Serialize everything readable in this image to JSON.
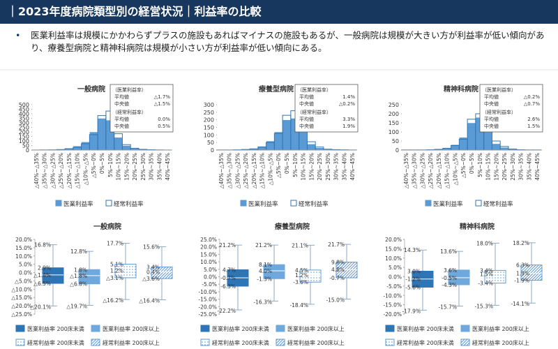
{
  "header": {
    "title": "｜2023年度病院類型別の経営状況｜利益率の比較"
  },
  "bullets": [
    "医業利益率は規模にかかわらずプラスの施設もあればマイナスの施設もあるが、一般病院は規模が大きい方が利益率が低い傾向があり、療養型病院と精神科病院は規模が小さい方が利益率が低い傾向にある。"
  ],
  "chart_data": [
    {
      "type": "bar",
      "title": "一般病院",
      "categories": [
        "△40%~△35%",
        "△35%~△30%",
        "△30%~△25%",
        "△25%~△20%",
        "△20%~△15%",
        "△15%~△10%",
        "△10%~△5%",
        "△5%~0%",
        "0%~5%",
        "5%~10%",
        "10%~15%",
        "15%~20%",
        "20%~25%",
        "25%~30%",
        "30%~35%",
        "35%~40%",
        "40%~45%"
      ],
      "series": [
        {
          "name": "医業利益率",
          "color": "#5b9bd5",
          "outline": false,
          "values": [
            2,
            3,
            5,
            10,
            20,
            45,
            90,
            200,
            350,
            330,
            140,
            50,
            20,
            8,
            4,
            2,
            1
          ]
        },
        {
          "name": "経常利益率",
          "color": "#2e75b6",
          "outline": true,
          "values": [
            1,
            2,
            3,
            6,
            15,
            30,
            70,
            170,
            380,
            430,
            180,
            60,
            20,
            8,
            4,
            2,
            1
          ]
        }
      ],
      "ylim": [
        0,
        500
      ],
      "yticks": [
        0,
        50,
        100,
        150,
        200,
        250,
        300,
        350,
        400,
        450,
        500
      ],
      "stats": [
        {
          "heading": "（医業利益率）",
          "rows": [
            [
              "平均値",
              "△1.7%"
            ],
            [
              "中央値",
              "△1.5%"
            ]
          ]
        },
        {
          "heading": "（経常利益率）",
          "rows": [
            [
              "平均値",
              "0.0%"
            ],
            [
              "中央値",
              "0.5%"
            ]
          ]
        }
      ]
    },
    {
      "type": "bar",
      "title": "療養型病院",
      "categories": [
        "△40%~△35%",
        "△35%~△30%",
        "△30%~△25%",
        "△25%~△20%",
        "△20%~△15%",
        "△15%~△10%",
        "△10%~△5%",
        "△5%~0%",
        "0%~5%",
        "5%~10%",
        "10%~15%",
        "15%~20%",
        "20%~25%",
        "25%~30%",
        "30%~35%",
        "35%~40%",
        "40%~45%"
      ],
      "series": [
        {
          "name": "医業利益率",
          "color": "#5b9bd5",
          "outline": false,
          "values": [
            1,
            2,
            3,
            5,
            10,
            25,
            60,
            120,
            200,
            210,
            120,
            40,
            15,
            5,
            3,
            2,
            1
          ]
        },
        {
          "name": "経常利益率",
          "color": "#2e75b6",
          "outline": true,
          "values": [
            1,
            1,
            2,
            4,
            8,
            20,
            50,
            110,
            230,
            260,
            160,
            55,
            20,
            6,
            3,
            2,
            1
          ]
        }
      ],
      "ylim": [
        0,
        300
      ],
      "yticks": [
        0,
        50,
        100,
        150,
        200,
        250,
        300
      ],
      "stats": [
        {
          "heading": "（医業利益率）",
          "rows": [
            [
              "平均値",
              "1.4%"
            ],
            [
              "中央値",
              "△0.2%"
            ]
          ]
        },
        {
          "heading": "（経常利益率）",
          "rows": [
            [
              "平均値",
              "3.3%"
            ],
            [
              "中央値",
              "1.9%"
            ]
          ]
        }
      ]
    },
    {
      "type": "bar",
      "title": "精神科病院",
      "categories": [
        "△40%~△35%",
        "△35%~△30%",
        "△30%~△25%",
        "△25%~△20%",
        "△20%~△15%",
        "△15%~△10%",
        "△10%~△5%",
        "△5%~0%",
        "0%~5%",
        "5%~10%",
        "10%~15%",
        "15%~20%",
        "20%~25%",
        "25%~30%",
        "30%~35%",
        "35%~40%",
        "40%~45%"
      ],
      "series": [
        {
          "name": "医業利益率",
          "color": "#5b9bd5",
          "outline": false,
          "values": [
            1,
            1,
            2,
            3,
            5,
            12,
            30,
            70,
            150,
            180,
            100,
            35,
            15,
            5,
            2,
            1,
            1
          ]
        },
        {
          "name": "経常利益率",
          "color": "#2e75b6",
          "outline": true,
          "values": [
            1,
            1,
            1,
            2,
            4,
            10,
            25,
            60,
            170,
            200,
            130,
            50,
            20,
            6,
            2,
            1,
            1
          ]
        }
      ],
      "ylim": [
        0,
        250
      ],
      "yticks": [
        0,
        50,
        100,
        150,
        200,
        250
      ],
      "stats": [
        {
          "heading": "（医業利益率）",
          "rows": [
            [
              "平均値",
              "△0.2%"
            ],
            [
              "中央値",
              "△0.7%"
            ]
          ]
        },
        {
          "heading": "（経常利益率）",
          "rows": [
            [
              "平均値",
              "2.6%"
            ],
            [
              "中央値",
              "1.5%"
            ]
          ]
        }
      ]
    },
    {
      "type": "box",
      "title": "一般病院",
      "ylim": [
        -25,
        20
      ],
      "yticks": [
        {
          "value": 20,
          "label": "20.0%"
        },
        {
          "value": 15,
          "label": "15.0%"
        },
        {
          "value": 10,
          "label": "10.0%"
        },
        {
          "value": 5,
          "label": "5.0%"
        },
        {
          "value": 0,
          "label": "0.0%"
        },
        {
          "value": -5,
          "label": "△5.0%"
        },
        {
          "value": -10,
          "label": "△10.0%"
        },
        {
          "value": -15,
          "label": "△15.0%"
        },
        {
          "value": -20,
          "label": "△20.0%"
        },
        {
          "value": -25,
          "label": "△25.0%"
        }
      ],
      "series": [
        {
          "name": "医業利益率 200床未満",
          "color": "#2e75b6",
          "pattern": "solid",
          "values": [
            -20.1,
            -6.5,
            -1.4,
            2.9,
            16.8
          ],
          "value_labels": [
            "△20.1%",
            "△6.5%",
            "△1.4%",
            "2.9%",
            "16.8%"
          ]
        },
        {
          "name": "医業利益率 200床以上",
          "color": "#6fa8dc",
          "pattern": "solid",
          "values": [
            -19.7,
            -6.8,
            -1.8,
            1.8,
            12.8
          ],
          "value_labels": [
            "△19.7%",
            "△6.8%",
            "△1.8%",
            "1.8%",
            "12.8%"
          ]
        },
        {
          "name": "経常利益率 200床未満",
          "color": "#5b9bd5",
          "pattern": "dots",
          "values": [
            -16.2,
            -3.1,
            1.2,
            5.1,
            17.7
          ],
          "value_labels": [
            "△16.2%",
            "△3.1%",
            "1.2%",
            "5.1%",
            "17.7%"
          ]
        },
        {
          "name": "経常利益率 200床以上",
          "color": "#5b9bd5",
          "pattern": "diagonal",
          "values": [
            -16.4,
            -3.6,
            0.4,
            3.4,
            15.6
          ],
          "value_labels": [
            "△16.4%",
            "△3.6%",
            "0.4%",
            "3.4%",
            "15.6%"
          ]
        }
      ]
    },
    {
      "type": "box",
      "title": "療養型病院",
      "ylim": [
        -25,
        25
      ],
      "yticks": [
        {
          "value": 25,
          "label": "25.0%"
        },
        {
          "value": 20,
          "label": "20.0%"
        },
        {
          "value": 15,
          "label": "15.0%"
        },
        {
          "value": 10,
          "label": "10.0%"
        },
        {
          "value": 5,
          "label": "5.0%"
        },
        {
          "value": 0,
          "label": "0.0%"
        },
        {
          "value": -5,
          "label": "-5.0%"
        },
        {
          "value": -10,
          "label": "-10.0%"
        },
        {
          "value": -15,
          "label": "-15.0%"
        },
        {
          "value": -20,
          "label": "-20.0%"
        },
        {
          "value": -25,
          "label": "-25.0%"
        }
      ],
      "series": [
        {
          "name": "医業利益率 200床未満",
          "color": "#2e75b6",
          "pattern": "solid",
          "values": [
            -22.2,
            -6.3,
            -0.7,
            4.7,
            21.2
          ],
          "value_labels": [
            "-22.2%",
            "-6.3%",
            "-0.7%",
            "4.7%",
            "21.2%"
          ]
        },
        {
          "name": "医業利益率 200床以上",
          "color": "#6fa8dc",
          "pattern": "solid",
          "values": [
            -16.3,
            -1.3,
            4.0,
            8.1,
            21.2
          ],
          "value_labels": [
            "-16.3%",
            "-1.3%",
            "4.0%",
            "8.1%",
            "21.2%"
          ]
        },
        {
          "name": "経常利益率 200床未満",
          "color": "#5b9bd5",
          "pattern": "dots",
          "values": [
            -18.4,
            -3.6,
            1.2,
            4.5,
            21.1
          ],
          "value_labels": [
            "-18.4%",
            "-3.6%",
            "1.2%",
            "4.5%",
            "21.1%"
          ]
        },
        {
          "name": "経常利益率 200床以上",
          "color": "#5b9bd5",
          "pattern": "diagonal",
          "values": [
            -15.0,
            -0.7,
            4.8,
            9.8,
            21.7
          ],
          "value_labels": [
            "-15.0%",
            "-0.7%",
            "4.8%",
            "9.8%",
            "21.7%"
          ]
        }
      ]
    },
    {
      "type": "box",
      "title": "精神科病院",
      "ylim": [
        -20,
        20
      ],
      "yticks": [
        {
          "value": 20,
          "label": "20.0%"
        },
        {
          "value": 15,
          "label": "15.0%"
        },
        {
          "value": 10,
          "label": "10.0%"
        },
        {
          "value": 5,
          "label": "5.0%"
        },
        {
          "value": 0,
          "label": "0.0%"
        },
        {
          "value": -5,
          "label": "-5.0%"
        },
        {
          "value": -10,
          "label": "-10.0%"
        },
        {
          "value": -15,
          "label": "-15.0%"
        },
        {
          "value": -20,
          "label": "-20.0%"
        }
      ],
      "series": [
        {
          "name": "医業利益率 200床未満",
          "color": "#2e75b6",
          "pattern": "solid",
          "values": [
            -17.9,
            -5.6,
            -1.2,
            3.0,
            14.3
          ],
          "value_labels": [
            "-17.9%",
            "-5.6%",
            "-1.2%",
            "3.0%",
            "14.3%"
          ]
        },
        {
          "name": "医業利益率 200床以上",
          "color": "#6fa8dc",
          "pattern": "solid",
          "values": [
            -15.7,
            -4.3,
            -0.5,
            3.6,
            13.6
          ],
          "value_labels": [
            "-15.7%",
            "-4.3%",
            "-0.5%",
            "3.6%",
            "13.6%"
          ]
        },
        {
          "name": "経常利益率 200床未満",
          "color": "#5b9bd5",
          "pattern": "dots",
          "values": [
            -15.3,
            -3.4,
            1.5,
            3.4,
            18.0
          ],
          "value_labels": [
            "-15.3%",
            "-3.4%",
            "1.5%",
            "3.4%",
            "18.0%"
          ]
        },
        {
          "name": "経常利益率 200床以上",
          "color": "#5b9bd5",
          "pattern": "diagonal",
          "values": [
            -14.1,
            -1.9,
            1.9,
            6.3,
            18.2
          ],
          "value_labels": [
            "-14.1%",
            "-1.9%",
            "1.9%",
            "6.3%",
            "18.2%"
          ]
        }
      ]
    }
  ]
}
